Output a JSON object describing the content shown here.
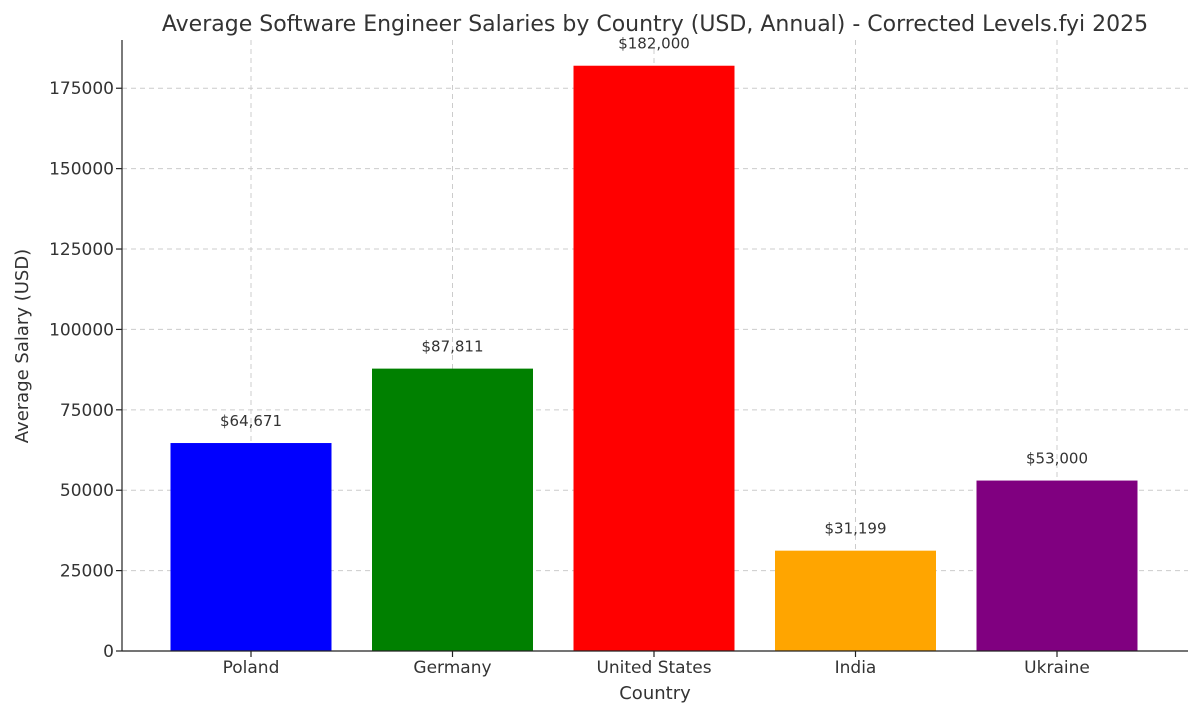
{
  "chart_data": {
    "type": "bar",
    "title": "Average Software Engineer Salaries by Country (USD, Annual) - Corrected Levels.fyi 2025",
    "xlabel": "Country",
    "ylabel": "Average Salary (USD)",
    "ylim": [
      0,
      190000
    ],
    "yticks": [
      0,
      25000,
      50000,
      75000,
      100000,
      125000,
      150000,
      175000
    ],
    "ytick_labels": [
      "0",
      "25000",
      "50000",
      "75000",
      "100000",
      "125000",
      "150000",
      "175000"
    ],
    "categories": [
      "Poland",
      "Germany",
      "United States",
      "India",
      "Ukraine"
    ],
    "values": [
      64671,
      87811,
      182000,
      31199,
      53000
    ],
    "data_labels": [
      "$64,671",
      "$87,811",
      "$182,000",
      "$31,199",
      "$53,000"
    ],
    "colors": [
      "#0000ff",
      "#008000",
      "#ff0000",
      "#ffa500",
      "#800080"
    ],
    "grid": true,
    "legend": "none"
  }
}
